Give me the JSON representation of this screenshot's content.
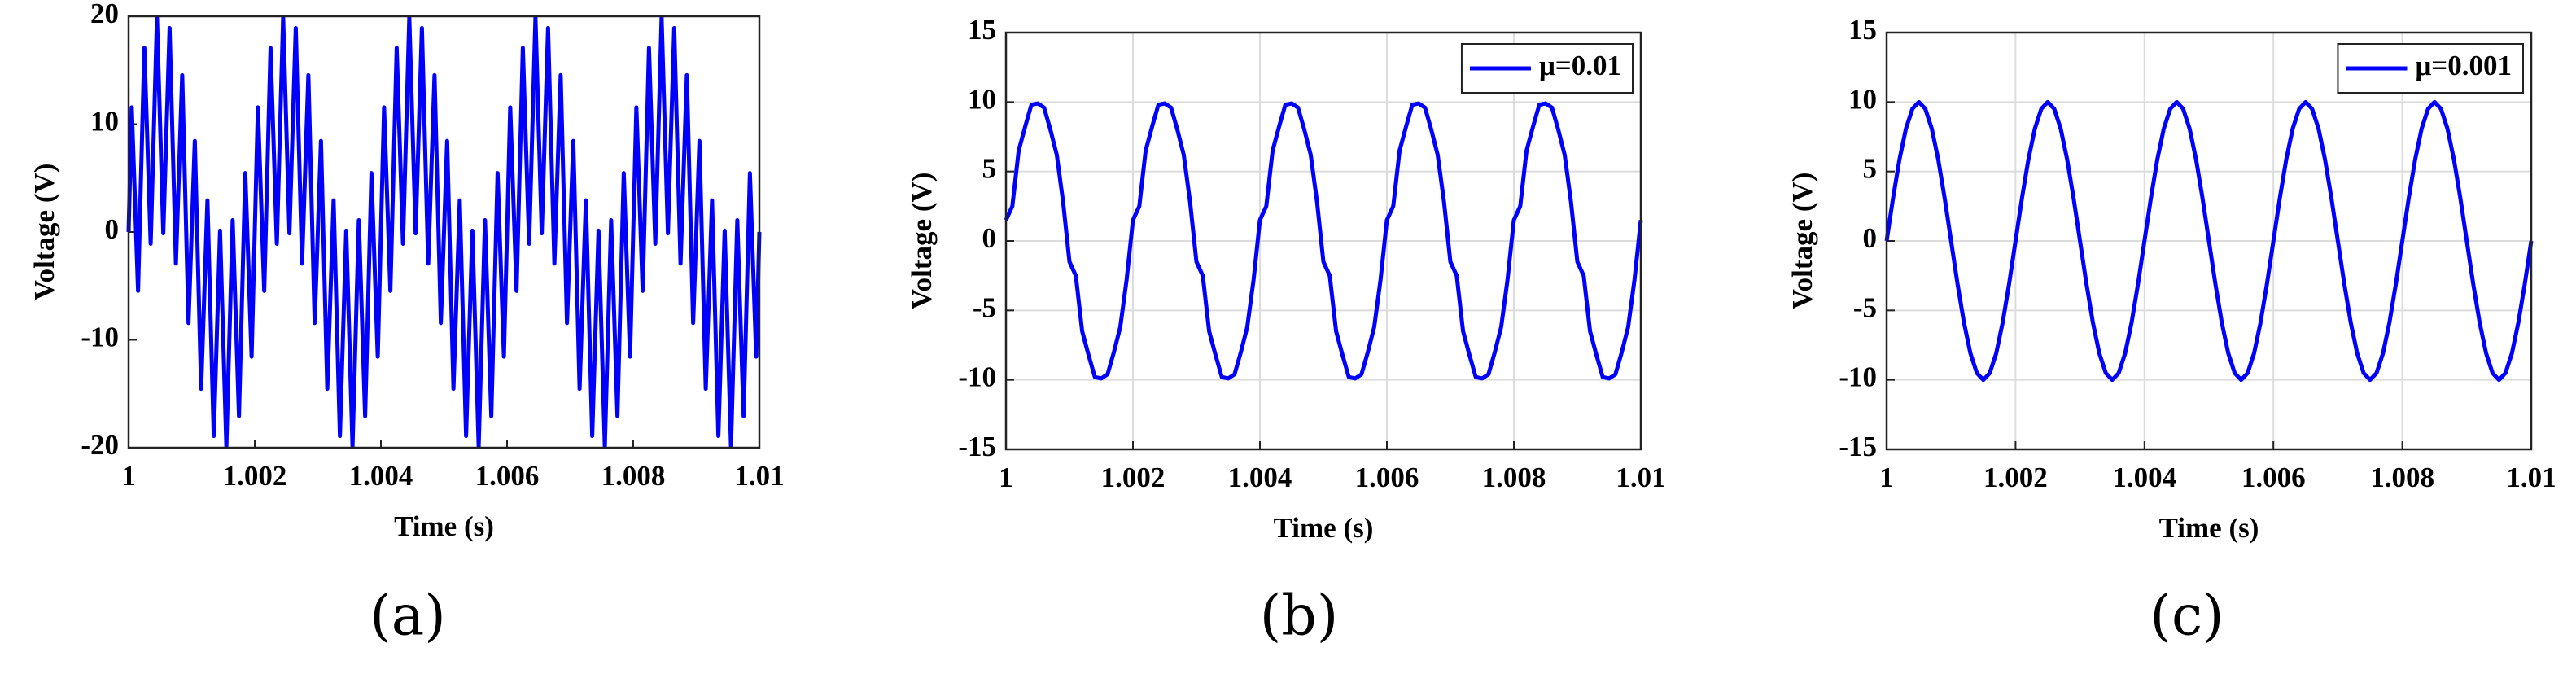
{
  "chart_data": [
    {
      "type": "line",
      "label": "(a)",
      "xlabel": "Time (s)",
      "ylabel": "Voltage (V)",
      "color": "#0000ff",
      "grid": false,
      "xlim": [
        1,
        1.01
      ],
      "xticks": [
        1,
        1.002,
        1.004,
        1.006,
        1.008,
        1.01
      ],
      "ylim": [
        -20,
        20
      ],
      "yticks": [
        -20,
        -10,
        0,
        10,
        20
      ],
      "x": [
        1,
        1.00005,
        1.00015,
        1.00025,
        1.00035,
        1.00045,
        1.00055,
        1.00065,
        1.00075,
        1.00085,
        1.00095,
        1.00105,
        1.00115,
        1.00125,
        1.00135,
        1.00145,
        1.00155,
        1.00165,
        1.00175,
        1.00185,
        1.00195,
        1.00205,
        1.00215,
        1.00225,
        1.00235,
        1.00245,
        1.00255,
        1.00265,
        1.00275,
        1.00285,
        1.00295,
        1.00305,
        1.00315,
        1.00325,
        1.00335,
        1.00345,
        1.00355,
        1.00365,
        1.00375,
        1.00385,
        1.00395,
        1.00405,
        1.00415,
        1.00425,
        1.00435,
        1.00445,
        1.00455,
        1.00465,
        1.00475,
        1.00485,
        1.00495,
        1.00505,
        1.00515,
        1.00525,
        1.00535,
        1.00545,
        1.00555,
        1.00565,
        1.00575,
        1.00585,
        1.00595,
        1.00605,
        1.00615,
        1.00625,
        1.00635,
        1.00645,
        1.00655,
        1.00665,
        1.00675,
        1.00685,
        1.00695,
        1.00705,
        1.00715,
        1.00725,
        1.00735,
        1.00745,
        1.00755,
        1.00765,
        1.00775,
        1.00785,
        1.00795,
        1.00805,
        1.00815,
        1.00825,
        1.00835,
        1.00845,
        1.00855,
        1.00865,
        1.00875,
        1.00885,
        1.00895,
        1.00905,
        1.00915,
        1.00925,
        1.00935,
        1.00945,
        1.00955,
        1.00965,
        1.00975,
        1.00985,
        1.00995,
        1.01
      ],
      "values": [
        0,
        11.56,
        -5.46,
        17.07,
        -1.09,
        19.88,
        -0.12,
        18.91,
        -2.93,
        14.54,
        -8.44,
        8.44,
        -14.54,
        2.93,
        -18.91,
        0.12,
        -19.88,
        1.09,
        -17.07,
        5.46,
        -11.56,
        11.56,
        -5.46,
        17.07,
        -1.09,
        19.88,
        -0.12,
        18.91,
        -2.93,
        14.54,
        -8.44,
        8.44,
        -14.54,
        2.93,
        -18.91,
        0.12,
        -19.88,
        1.09,
        -17.07,
        5.46,
        -11.56,
        11.56,
        -5.46,
        17.07,
        -1.09,
        19.88,
        -0.12,
        18.91,
        -2.93,
        14.54,
        -8.44,
        8.44,
        -14.54,
        2.93,
        -18.91,
        0.12,
        -19.88,
        1.09,
        -17.07,
        5.46,
        -11.56,
        11.56,
        -5.46,
        17.07,
        -1.09,
        19.88,
        -0.12,
        18.91,
        -2.93,
        14.54,
        -8.44,
        8.44,
        -14.54,
        2.93,
        -18.91,
        0.12,
        -19.88,
        1.09,
        -17.07,
        5.46,
        -11.56,
        11.56,
        -5.46,
        17.07,
        -1.09,
        19.88,
        -0.12,
        18.91,
        -2.93,
        14.54,
        -8.44,
        8.44,
        -14.54,
        2.93,
        -18.91,
        0.12,
        -19.88,
        1.09,
        -17.07,
        5.46,
        -11.56,
        0
      ]
    },
    {
      "type": "line",
      "label": "(b)",
      "xlabel": "Time (s)",
      "ylabel": "Voltage (V)",
      "grid": true,
      "legend": "upper right",
      "xlim": [
        1,
        1.01
      ],
      "xticks": [
        1,
        1.002,
        1.004,
        1.006,
        1.008,
        1.01
      ],
      "ylim": [
        -15,
        15
      ],
      "yticks": [
        -15,
        -10,
        -5,
        0,
        5,
        10,
        15
      ],
      "x": [
        1,
        1.0001,
        1.0002,
        1.0003,
        1.0004,
        1.0005,
        1.0006,
        1.0007,
        1.0008,
        1.0009,
        1.001,
        1.0011,
        1.0012,
        1.0013,
        1.0014,
        1.0015,
        1.0016,
        1.0017,
        1.0018,
        1.0019,
        1.002,
        1.0021,
        1.0022,
        1.0023,
        1.0024,
        1.0025,
        1.0026,
        1.0027,
        1.0028,
        1.0029,
        1.003,
        1.0031,
        1.0032,
        1.0033,
        1.0034,
        1.0035,
        1.0036,
        1.0037,
        1.0038,
        1.0039,
        1.004,
        1.0041,
        1.0042,
        1.0043,
        1.0044,
        1.0045,
        1.0046,
        1.0047,
        1.0048,
        1.0049,
        1.005,
        1.0051,
        1.0052,
        1.0053,
        1.0054,
        1.0055,
        1.0056,
        1.0057,
        1.0058,
        1.0059,
        1.006,
        1.0061,
        1.0062,
        1.0063,
        1.0064,
        1.0065,
        1.0066,
        1.0067,
        1.0068,
        1.0069,
        1.007,
        1.0071,
        1.0072,
        1.0073,
        1.0074,
        1.0075,
        1.0076,
        1.0077,
        1.0078,
        1.0079,
        1.008,
        1.0081,
        1.0082,
        1.0083,
        1.0084,
        1.0085,
        1.0086,
        1.0087,
        1.0088,
        1.0089,
        1.009,
        1.0091,
        1.0092,
        1.0093,
        1.0094,
        1.0095,
        1.0096,
        1.0097,
        1.0098,
        1.0099,
        1.01
      ],
      "series": [
        {
          "name": "μ=0.01",
          "color": "#0000ff",
          "values": [
            1.5,
            2.5,
            6.5,
            8.2,
            9.8,
            9.9,
            9.6,
            8,
            6.2,
            2.8,
            -1.5,
            -2.5,
            -6.5,
            -8.2,
            -9.8,
            -9.9,
            -9.6,
            -8,
            -6.2,
            -2.8,
            1.5,
            2.5,
            6.5,
            8.2,
            9.8,
            9.9,
            9.6,
            8,
            6.2,
            2.8,
            -1.5,
            -2.5,
            -6.5,
            -8.2,
            -9.8,
            -9.9,
            -9.6,
            -8,
            -6.2,
            -2.8,
            1.5,
            2.5,
            6.5,
            8.2,
            9.8,
            9.9,
            9.6,
            8,
            6.2,
            2.8,
            -1.5,
            -2.5,
            -6.5,
            -8.2,
            -9.8,
            -9.9,
            -9.6,
            -8,
            -6.2,
            -2.8,
            1.5,
            2.5,
            6.5,
            8.2,
            9.8,
            9.9,
            9.6,
            8,
            6.2,
            2.8,
            -1.5,
            -2.5,
            -6.5,
            -8.2,
            -9.8,
            -9.9,
            -9.6,
            -8,
            -6.2,
            -2.8,
            1.5,
            2.5,
            6.5,
            8.2,
            9.8,
            9.9,
            9.6,
            8,
            6.2,
            2.8,
            -1.5,
            -2.5,
            -6.5,
            -8.2,
            -9.8,
            -9.9,
            -9.6,
            -8,
            -6.2,
            -2.8,
            1.5
          ]
        }
      ]
    },
    {
      "type": "line",
      "label": "(c)",
      "xlabel": "Time (s)",
      "ylabel": "Voltage (V)",
      "grid": true,
      "legend": "upper right",
      "xlim": [
        1,
        1.01
      ],
      "xticks": [
        1,
        1.002,
        1.004,
        1.006,
        1.008,
        1.01
      ],
      "ylim": [
        -15,
        15
      ],
      "yticks": [
        -15,
        -10,
        -5,
        0,
        5,
        10,
        15
      ],
      "x": [
        1,
        1.0001,
        1.0002,
        1.0003,
        1.0004,
        1.0005,
        1.0006,
        1.0007,
        1.0008,
        1.0009,
        1.001,
        1.0011,
        1.0012,
        1.0013,
        1.0014,
        1.0015,
        1.0016,
        1.0017,
        1.0018,
        1.0019,
        1.002,
        1.0021,
        1.0022,
        1.0023,
        1.0024,
        1.0025,
        1.0026,
        1.0027,
        1.0028,
        1.0029,
        1.003,
        1.0031,
        1.0032,
        1.0033,
        1.0034,
        1.0035,
        1.0036,
        1.0037,
        1.0038,
        1.0039,
        1.004,
        1.0041,
        1.0042,
        1.0043,
        1.0044,
        1.0045,
        1.0046,
        1.0047,
        1.0048,
        1.0049,
        1.005,
        1.0051,
        1.0052,
        1.0053,
        1.0054,
        1.0055,
        1.0056,
        1.0057,
        1.0058,
        1.0059,
        1.006,
        1.0061,
        1.0062,
        1.0063,
        1.0064,
        1.0065,
        1.0066,
        1.0067,
        1.0068,
        1.0069,
        1.007,
        1.0071,
        1.0072,
        1.0073,
        1.0074,
        1.0075,
        1.0076,
        1.0077,
        1.0078,
        1.0079,
        1.008,
        1.0081,
        1.0082,
        1.0083,
        1.0084,
        1.0085,
        1.0086,
        1.0087,
        1.0088,
        1.0089,
        1.009,
        1.0091,
        1.0092,
        1.0093,
        1.0094,
        1.0095,
        1.0096,
        1.0097,
        1.0098,
        1.0099,
        1.01
      ],
      "series": [
        {
          "name": "μ=0.001",
          "color": "#0000ff",
          "values": [
            0,
            3.09,
            5.88,
            8.09,
            9.51,
            10,
            9.51,
            8.09,
            5.88,
            3.09,
            0,
            -3.09,
            -5.88,
            -8.09,
            -9.51,
            -10,
            -9.51,
            -8.09,
            -5.88,
            -3.09,
            0,
            3.09,
            5.88,
            8.09,
            9.51,
            10,
            9.51,
            8.09,
            5.88,
            3.09,
            0,
            -3.09,
            -5.88,
            -8.09,
            -9.51,
            -10,
            -9.51,
            -8.09,
            -5.88,
            -3.09,
            0,
            3.09,
            5.88,
            8.09,
            9.51,
            10,
            9.51,
            8.09,
            5.88,
            3.09,
            0,
            -3.09,
            -5.88,
            -8.09,
            -9.51,
            -10,
            -9.51,
            -8.09,
            -5.88,
            -3.09,
            0,
            3.09,
            5.88,
            8.09,
            9.51,
            10,
            9.51,
            8.09,
            5.88,
            3.09,
            0,
            -3.09,
            -5.88,
            -8.09,
            -9.51,
            -10,
            -9.51,
            -8.09,
            -5.88,
            -3.09,
            0,
            3.09,
            5.88,
            8.09,
            9.51,
            10,
            9.51,
            8.09,
            5.88,
            3.09,
            0,
            -3.09,
            -5.88,
            -8.09,
            -9.51,
            -10,
            -9.51,
            -8.09,
            -5.88,
            -3.09,
            0
          ]
        }
      ]
    }
  ]
}
